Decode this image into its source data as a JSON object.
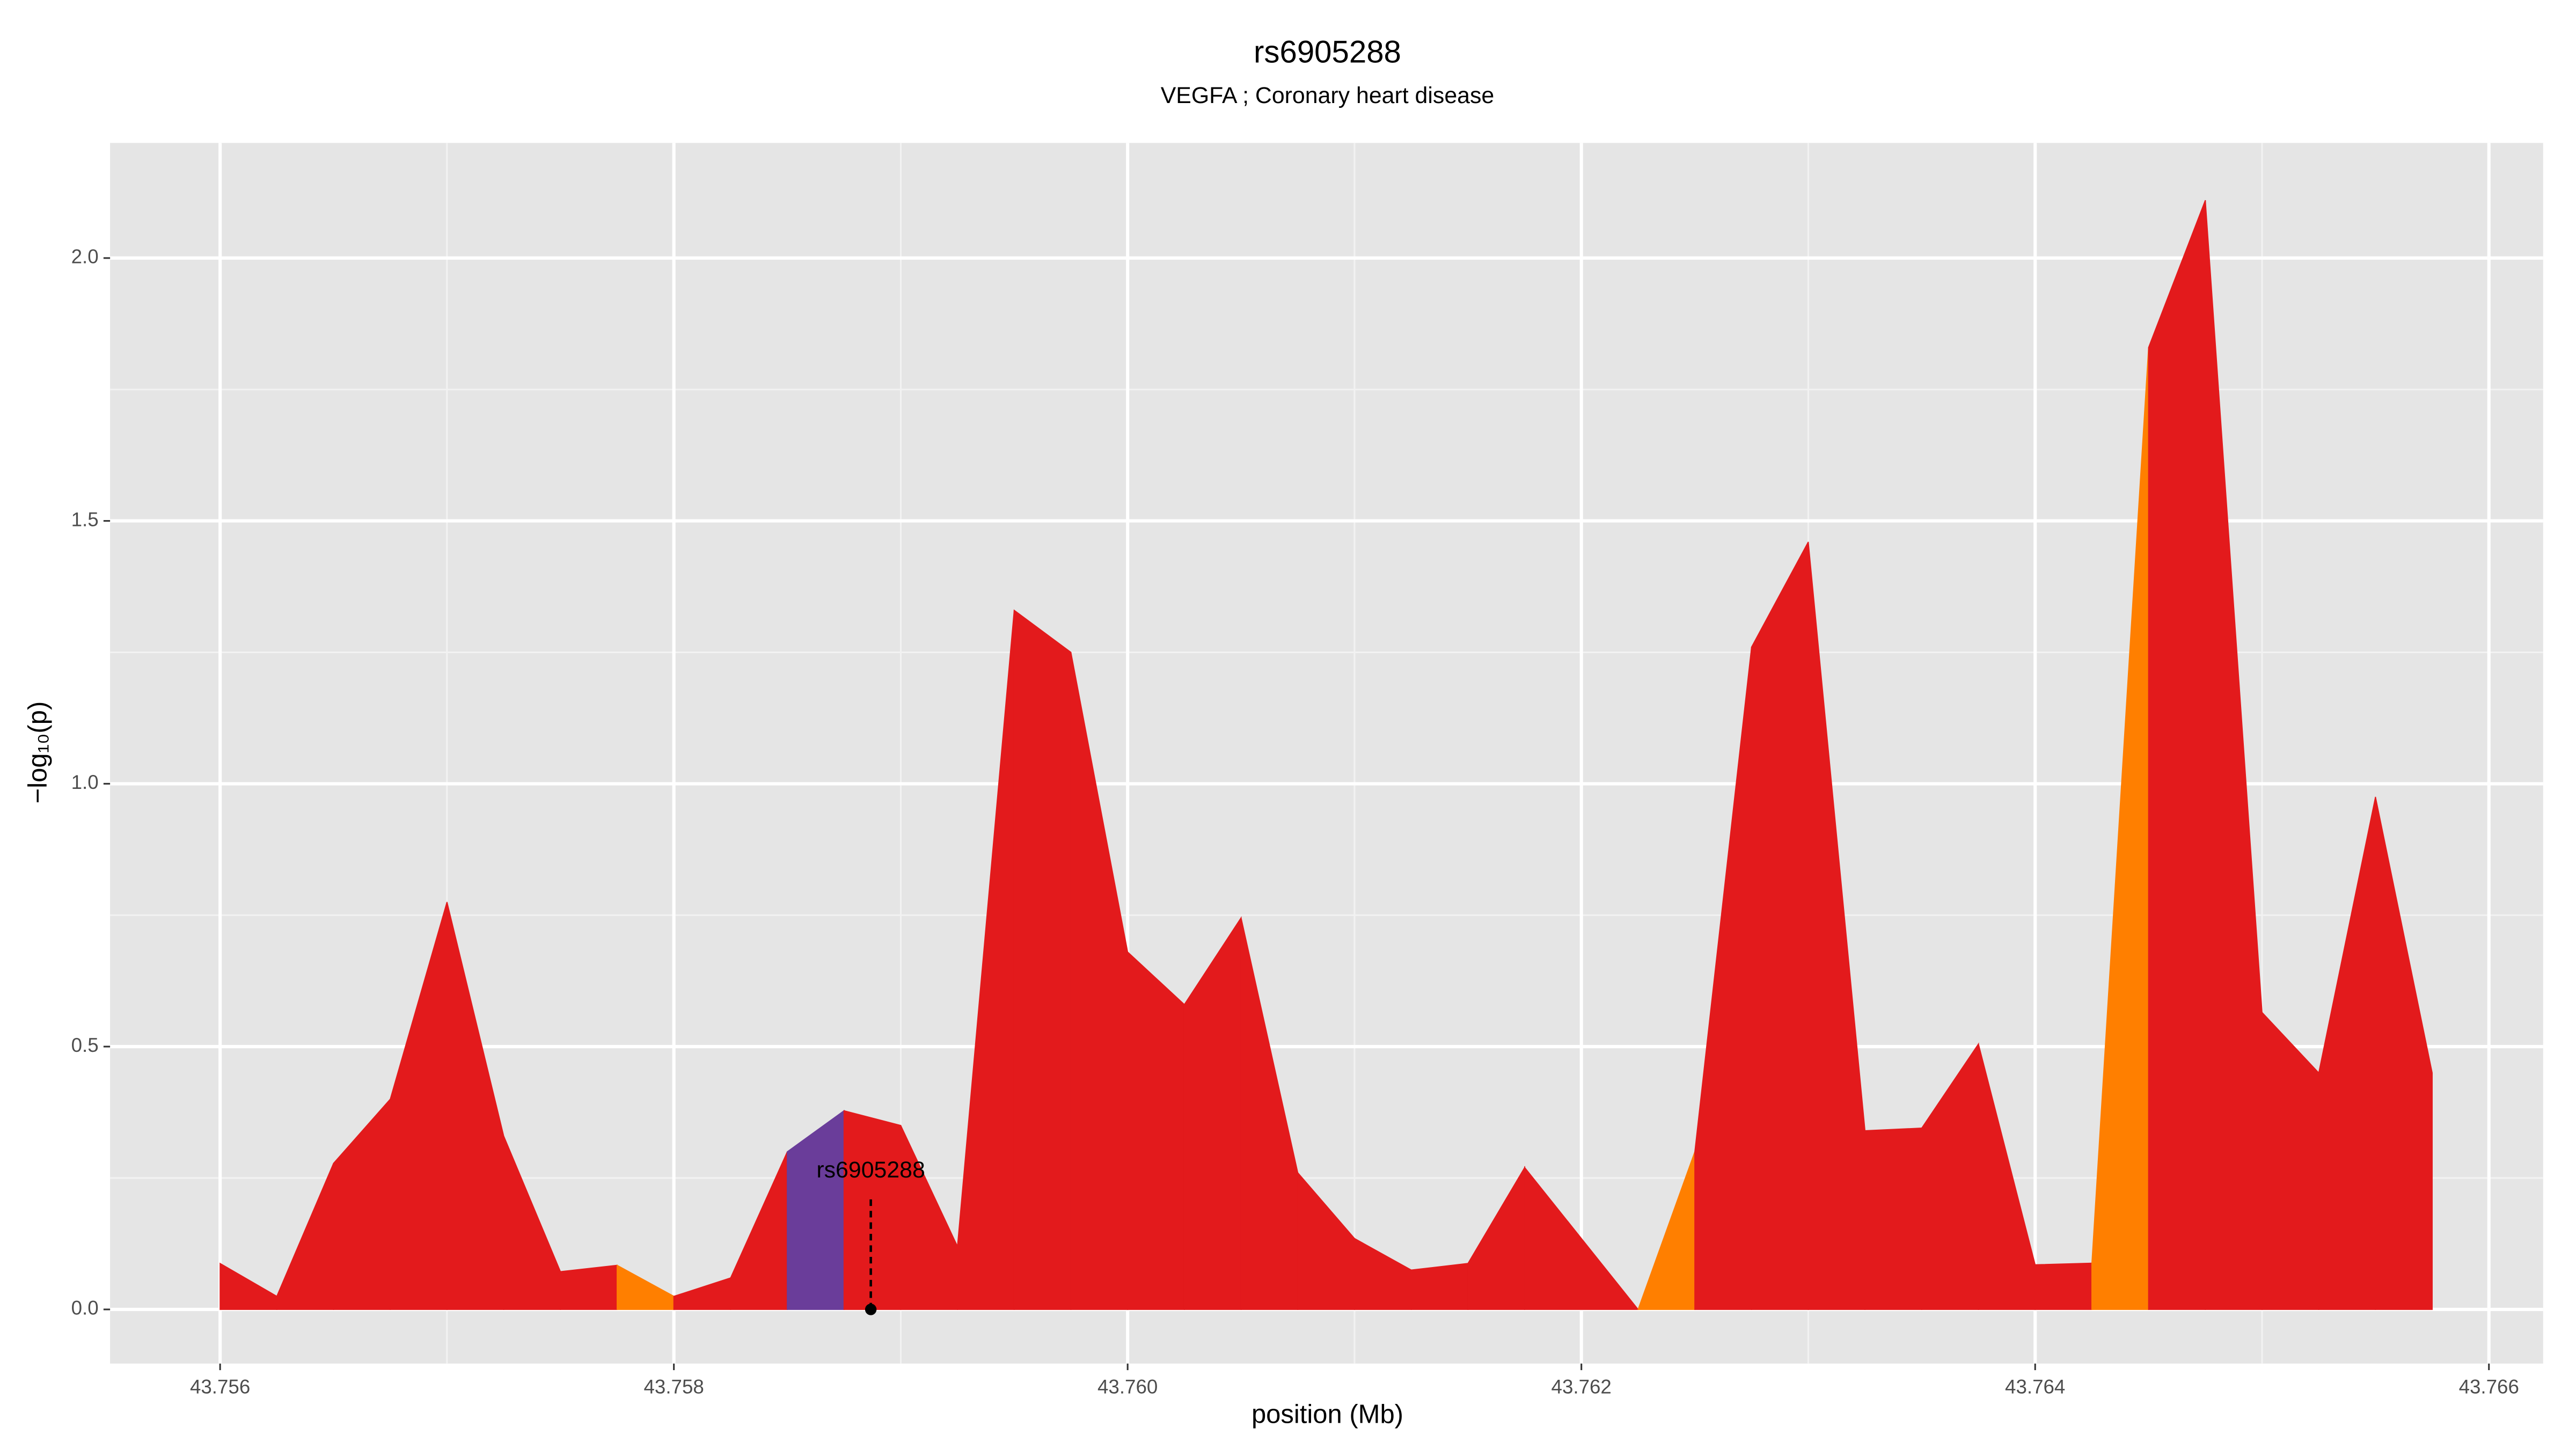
{
  "chart_data": {
    "type": "area",
    "title": "rs6905288",
    "subtitle": "VEGFA ; Coronary heart disease",
    "xlabel": "position (Mb)",
    "ylabel": "−log₁₀(p)",
    "x": [
      43.756,
      43.75625,
      43.7565,
      43.75675,
      43.757,
      43.75725,
      43.7575,
      43.75775,
      43.758,
      43.75825,
      43.7585,
      43.75875,
      43.759,
      43.75925,
      43.7595,
      43.75975,
      43.76,
      43.76025,
      43.7605,
      43.76075,
      43.761,
      43.76125,
      43.7615,
      43.76175,
      43.76225,
      43.7625,
      43.76275,
      43.763,
      43.76325,
      43.7635,
      43.76375,
      43.764,
      43.76425,
      43.7645,
      43.76475,
      43.765,
      43.76525,
      43.7655,
      43.76575
    ],
    "values": [
      0.0875,
      0.025,
      0.278,
      0.4,
      0.775,
      0.33,
      0.072,
      0.084,
      0.025,
      0.06,
      0.3,
      0.378,
      0.35,
      0.12,
      1.33,
      1.25,
      0.68,
      0.58,
      0.745,
      0.26,
      0.135,
      0.075,
      0.0875,
      0.27,
      0.0,
      0.3,
      1.26,
      1.46,
      0.34,
      0.345,
      0.505,
      0.085,
      0.088,
      1.83,
      2.11,
      0.565,
      0.45,
      0.975,
      0.45
    ],
    "segment_colors": [
      "#e31a1c",
      "#e31a1c",
      "#e31a1c",
      "#e31a1c",
      "#e31a1c",
      "#e31a1c",
      "#e31a1c",
      "#ff7f00",
      "#e31a1c",
      "#e31a1c",
      "#6a3d9a",
      "#e31a1c",
      "#e31a1c",
      "#e31a1c",
      "#e31a1c",
      "#e31a1c",
      "#e31a1c",
      "#e31a1c",
      "#e31a1c",
      "#e31a1c",
      "#e31a1c",
      "#e31a1c",
      "#e31a1c",
      "#e31a1c",
      "#ff7f00",
      "#e31a1c",
      "#e31a1c",
      "#e31a1c",
      "#e31a1c",
      "#e31a1c",
      "#e31a1c",
      "#e31a1c",
      "#ff7f00",
      "#e31a1c",
      "#e31a1c",
      "#e31a1c",
      "#e31a1c",
      "#e31a1c"
    ],
    "annotation": {
      "text": "rs6905288",
      "x": 43.758868,
      "y": 0
    },
    "xlim": [
      43.755515,
      43.766239
    ],
    "ylim": [
      -0.103,
      2.219
    ],
    "xticks": [
      43.756,
      43.758,
      {
        "value": 43.76,
        "label": "43.760"
      },
      43.762,
      43.764,
      43.766
    ],
    "yticks": [
      {
        "value": 0,
        "label": "0.0"
      },
      0.5,
      {
        "value": 1,
        "label": "1.0"
      },
      1.5,
      {
        "value": 2,
        "label": "2.0"
      }
    ],
    "minor_xticks": [
      43.757,
      43.759,
      43.761,
      43.763,
      43.765
    ],
    "minor_yticks": [
      0.25,
      0.75,
      1.25,
      1.75
    ],
    "grid": true
  }
}
